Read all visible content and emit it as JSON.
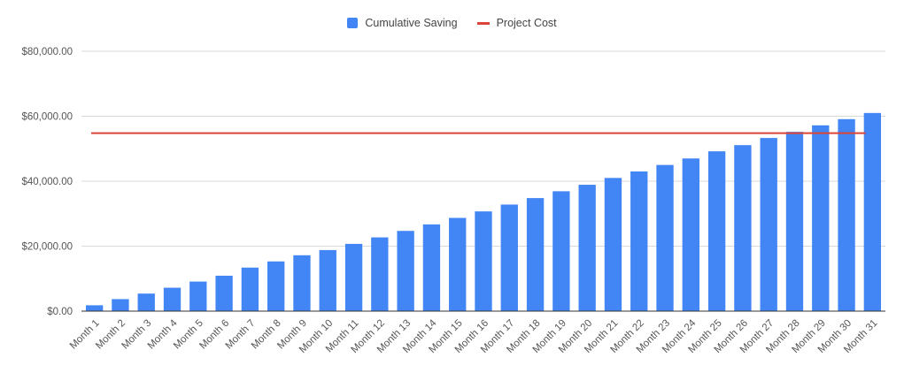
{
  "legend": {
    "bar_label": "Cumulative Saving",
    "line_label": "Project Cost"
  },
  "colors": {
    "bar": "#4285F4",
    "line": "#DB4437",
    "grid": "#D9D9D9",
    "axis": "#333333"
  },
  "chart_data": {
    "type": "bar",
    "title": "",
    "xlabel": "",
    "ylabel": "",
    "ylim": [
      0,
      80000
    ],
    "yticks": [
      "$0.00",
      "$20,000.00",
      "$40,000.00",
      "$60,000.00",
      "$80,000.00"
    ],
    "ytick_values": [
      0,
      20000,
      40000,
      60000,
      80000
    ],
    "grid": true,
    "legend_position": "top-center",
    "categories": [
      "Month 1",
      "Month 2",
      "Month 3",
      "Month 4",
      "Month 5",
      "Month 6",
      "Month 7",
      "Month 8",
      "Month 9",
      "Month 10",
      "Month 11",
      "Month 12",
      "Month 13",
      "Month 14",
      "Month 15",
      "Month 16",
      "Month 17",
      "Month 18",
      "Month 19",
      "Month 20",
      "Month 21",
      "Month 22",
      "Month 23",
      "Month 24",
      "Month 25",
      "Month 26",
      "Month 27",
      "Month 28",
      "Month 29",
      "Month 30",
      "Month 31"
    ],
    "series": [
      {
        "name": "Cumulative Saving",
        "type": "bar",
        "values": [
          1800,
          3700,
          5400,
          7200,
          9100,
          10900,
          13400,
          15300,
          17200,
          18800,
          20700,
          22700,
          24700,
          26700,
          28700,
          30700,
          32800,
          34800,
          36900,
          38900,
          41000,
          43000,
          45000,
          47000,
          49200,
          51100,
          53300,
          55200,
          57200,
          59100,
          61000
        ]
      },
      {
        "name": "Project Cost",
        "type": "line",
        "values": [
          54800,
          54800,
          54800,
          54800,
          54800,
          54800,
          54800,
          54800,
          54800,
          54800,
          54800,
          54800,
          54800,
          54800,
          54800,
          54800,
          54800,
          54800,
          54800,
          54800,
          54800,
          54800,
          54800,
          54800,
          54800,
          54800,
          54800,
          54800,
          54800,
          54800,
          54800
        ]
      }
    ]
  }
}
